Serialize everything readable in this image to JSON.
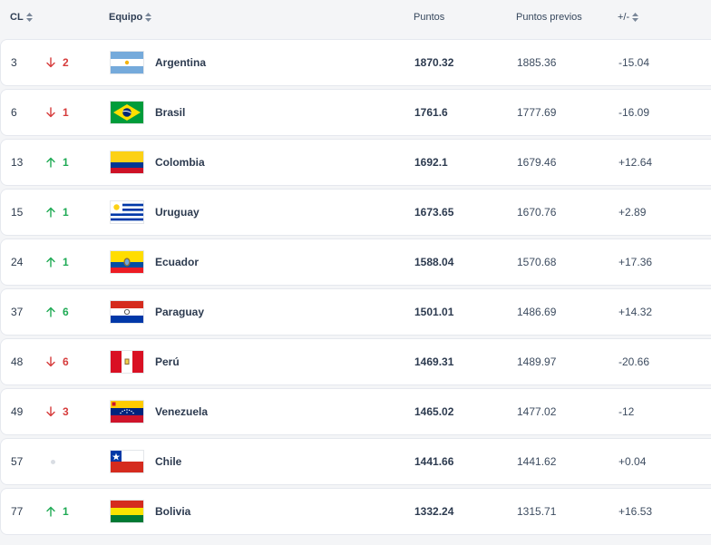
{
  "headers": {
    "rank": "CL",
    "team": "Equipo",
    "points": "Puntos",
    "previous_points": "Puntos previos",
    "difference": "+/-"
  },
  "colors": {
    "up": "#1eaa54",
    "down": "#d63b3b",
    "neutral": "#d9dde3"
  },
  "rows": [
    {
      "rank": "3",
      "movement": "down",
      "change": "2",
      "team": "Argentina",
      "flag": "argentina-flag-icon",
      "points": "1870.32",
      "previous": "1885.36",
      "diff": "-15.04"
    },
    {
      "rank": "6",
      "movement": "down",
      "change": "1",
      "team": "Brasil",
      "flag": "brazil-flag-icon",
      "points": "1761.6",
      "previous": "1777.69",
      "diff": "-16.09"
    },
    {
      "rank": "13",
      "movement": "up",
      "change": "1",
      "team": "Colombia",
      "flag": "colombia-flag-icon",
      "points": "1692.1",
      "previous": "1679.46",
      "diff": "+12.64"
    },
    {
      "rank": "15",
      "movement": "up",
      "change": "1",
      "team": "Uruguay",
      "flag": "uruguay-flag-icon",
      "points": "1673.65",
      "previous": "1670.76",
      "diff": "+2.89"
    },
    {
      "rank": "24",
      "movement": "up",
      "change": "1",
      "team": "Ecuador",
      "flag": "ecuador-flag-icon",
      "points": "1588.04",
      "previous": "1570.68",
      "diff": "+17.36"
    },
    {
      "rank": "37",
      "movement": "up",
      "change": "6",
      "team": "Paraguay",
      "flag": "paraguay-flag-icon",
      "points": "1501.01",
      "previous": "1486.69",
      "diff": "+14.32"
    },
    {
      "rank": "48",
      "movement": "down",
      "change": "6",
      "team": "Perú",
      "flag": "peru-flag-icon",
      "points": "1469.31",
      "previous": "1489.97",
      "diff": "-20.66"
    },
    {
      "rank": "49",
      "movement": "down",
      "change": "3",
      "team": "Venezuela",
      "flag": "venezuela-flag-icon",
      "points": "1465.02",
      "previous": "1477.02",
      "diff": "-12"
    },
    {
      "rank": "57",
      "movement": "same",
      "change": "",
      "team": "Chile",
      "flag": "chile-flag-icon",
      "points": "1441.66",
      "previous": "1441.62",
      "diff": "+0.04"
    },
    {
      "rank": "77",
      "movement": "up",
      "change": "1",
      "team": "Bolivia",
      "flag": "bolivia-flag-icon",
      "points": "1332.24",
      "previous": "1315.71",
      "diff": "+16.53"
    }
  ]
}
